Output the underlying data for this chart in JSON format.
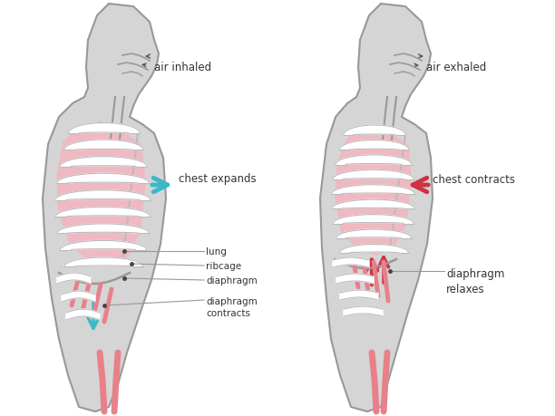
{
  "background_color": "#ffffff",
  "body_fill": "#d5d5d5",
  "body_stroke": "#999999",
  "lung_fill": "#f2b8c0",
  "rib_fill": "#ffffff",
  "rib_stroke": "#bbbbbb",
  "blood_vessel_color": "#e8808a",
  "arrow_inhale_color": "#3ab8c8",
  "arrow_exhale_color": "#cc3344",
  "text_color": "#333333",
  "line_color": "#999999",
  "label_top_left": "air inhaled",
  "label_top_right": "air exhaled",
  "label_chest_left": "chest expands",
  "label_chest_right": "chest contracts",
  "label_lung": "lung",
  "label_ribcage": "ribcage",
  "label_diaphragm": "diaphragm",
  "label_diaphragm_contracts": "diaphragm\ncontracts",
  "label_diaphragm_relaxes": "diaphragm\nrelaxes"
}
